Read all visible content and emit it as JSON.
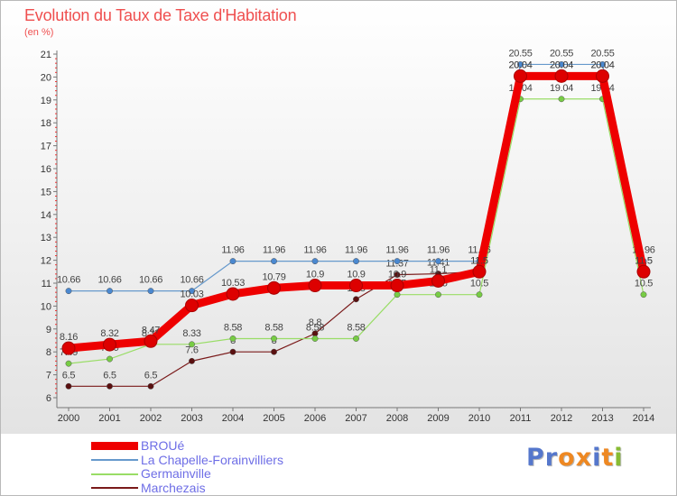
{
  "chart_data": {
    "type": "line",
    "title": "Evolution du Taux de Taxe d'Habitation",
    "subtitle": "(en %)",
    "x": [
      "2000",
      "2001",
      "2002",
      "2003",
      "2004",
      "2005",
      "2006",
      "2007",
      "2008",
      "2009",
      "2010",
      "2011",
      "2012",
      "2013",
      "2014"
    ],
    "yticks": [
      6,
      7,
      8,
      9,
      10,
      11,
      12,
      13,
      14,
      15,
      16,
      17,
      18,
      19,
      20,
      21
    ],
    "ylim": [
      6,
      21
    ],
    "grid": false,
    "legend_position": "bottom-left",
    "series": [
      {
        "name": "Marchezais",
        "color": "#7a1a1a",
        "marker": "#5a1010",
        "width": 1.2,
        "values": [
          6.5,
          6.5,
          6.5,
          7.6,
          8,
          8,
          8.8,
          10.3,
          11.37,
          11.41,
          11.5,
          20.04,
          20.04,
          20.04,
          11.5
        ],
        "labels": [
          "6.5",
          "6.5",
          "6.5",
          "7.6",
          "8",
          "8",
          "8.8",
          "10.3",
          "11.37",
          "11.41",
          "11.5",
          "20.04",
          "20.04",
          "20.04",
          "11.5"
        ]
      },
      {
        "name": "Germainville",
        "color": "#99dd66",
        "marker": "#77cc44",
        "width": 1.2,
        "values": [
          7.49,
          7.69,
          8.33,
          8.33,
          8.58,
          8.58,
          8.58,
          8.58,
          10.5,
          10.5,
          10.5,
          19.04,
          19.04,
          19.04,
          10.5
        ],
        "labels": [
          "7.49",
          "7.69",
          "8.33",
          "8.33",
          "8.58",
          "8.58",
          "8.58",
          "8.58",
          "10.5",
          "10.5",
          "10.5",
          "19.04",
          "19.04",
          "19.04",
          "10.5"
        ]
      },
      {
        "name": "La Chapelle-Forainvilliers",
        "color": "#6699cc",
        "marker": "#4a88d0",
        "width": 1.2,
        "values": [
          10.66,
          10.66,
          10.66,
          10.66,
          11.96,
          11.96,
          11.96,
          11.96,
          11.96,
          11.96,
          11.96,
          20.55,
          20.55,
          20.55,
          11.96
        ],
        "labels": [
          "10.66",
          "10.66",
          "10.66",
          "10.66",
          "11.96",
          "11.96",
          "11.96",
          "11.96",
          "11.96",
          "11.96",
          "11.96",
          "20.55",
          "20.55",
          "20.55",
          "11.96"
        ]
      },
      {
        "name": "BROUé",
        "color": "#ee0000",
        "marker": "#dd0000",
        "width": 9,
        "values": [
          8.16,
          8.32,
          8.47,
          10.03,
          10.53,
          10.79,
          10.9,
          10.9,
          10.9,
          11.1,
          11.5,
          20.04,
          20.04,
          20.04,
          11.5
        ],
        "labels": [
          "8.16",
          "8.32",
          "8.47",
          "10.03",
          "10.53",
          "10.79",
          "10.9",
          "10.9",
          "10.9",
          "11.1",
          "11.5",
          "20.04",
          "20.04",
          "20.04",
          "11.5"
        ]
      }
    ],
    "legend_order": [
      "BROUé",
      "La Chapelle-Forainvilliers",
      "Germainville",
      "Marchezais"
    ]
  },
  "logo": {
    "text": "Proxiti",
    "letter_colors": [
      "#5577cc",
      "#5577cc",
      "#ee8822",
      "#ee8822",
      "#5577cc",
      "#ee8822",
      "#88bb33"
    ]
  }
}
